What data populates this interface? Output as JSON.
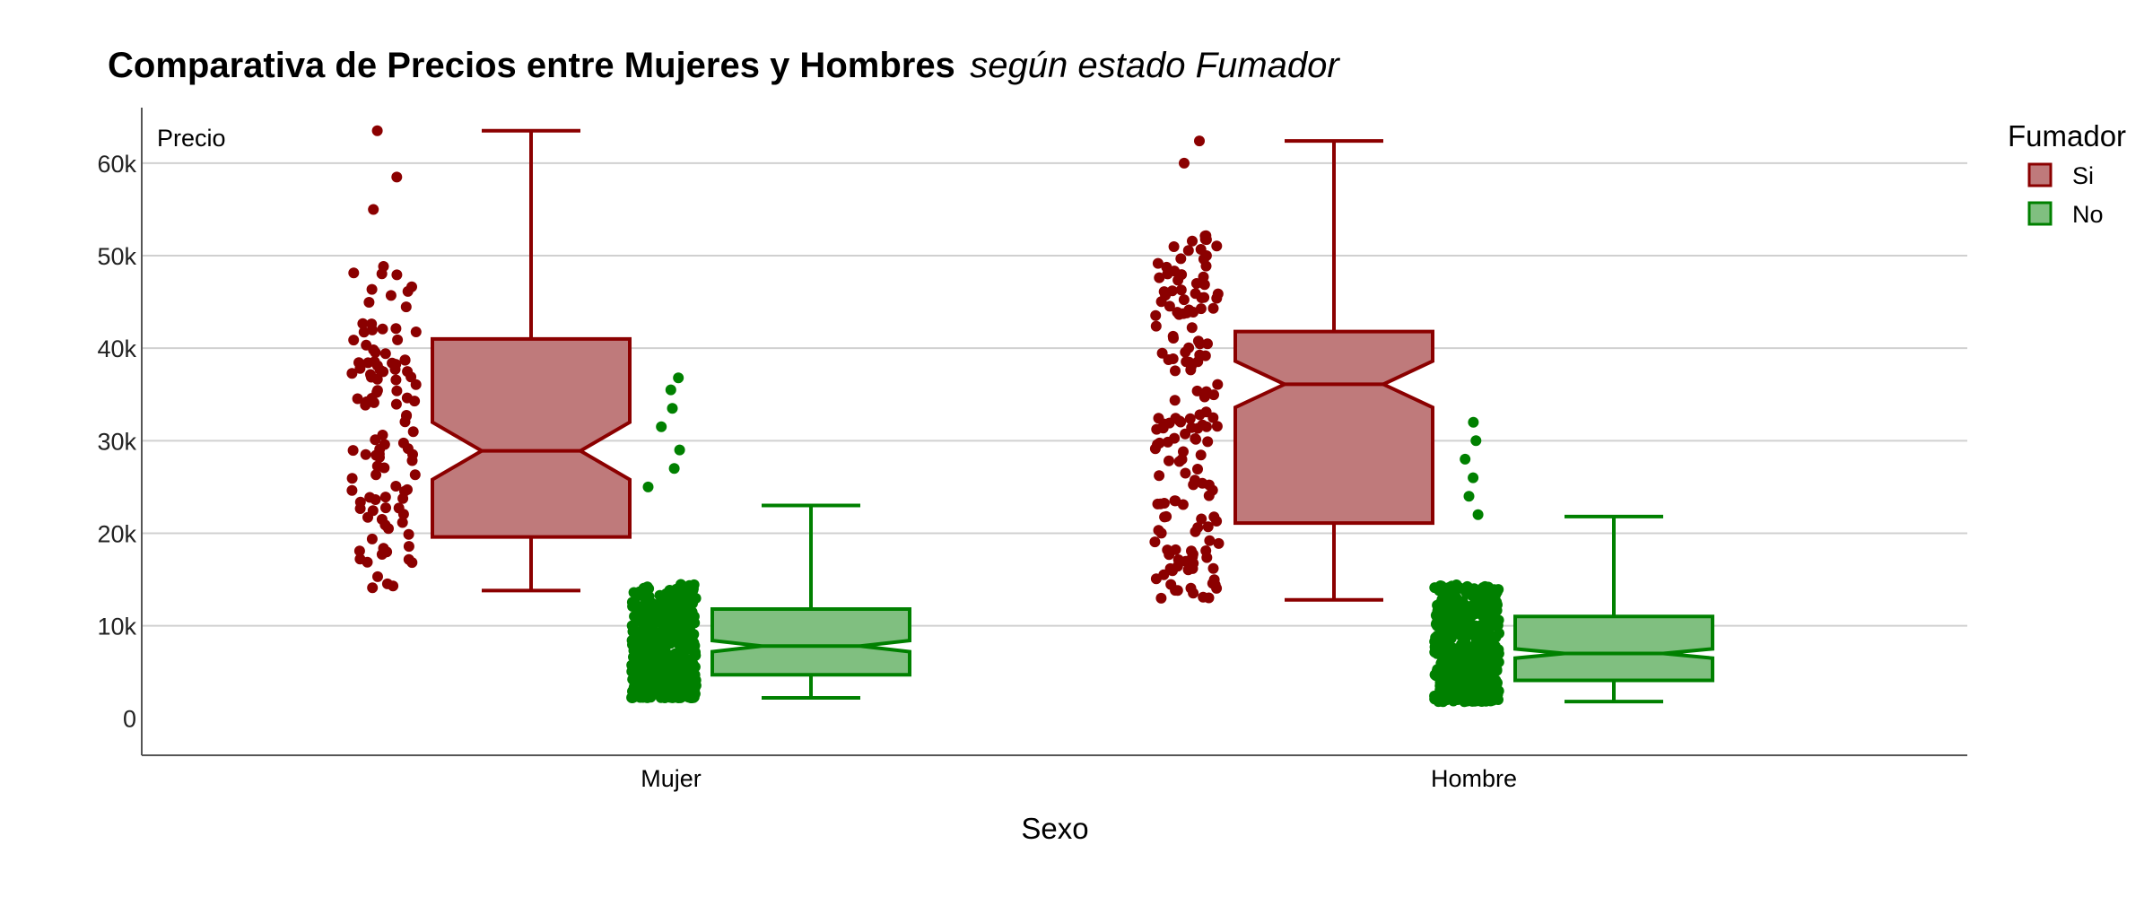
{
  "chart_data": {
    "type": "box",
    "title": "Comparativa de Precios entre Mujeres y Hombres",
    "subtitle": "según estado Fumador",
    "xlabel": "Sexo",
    "ylabel": "Precio",
    "y_ticks": [
      "0",
      "10k",
      "20k",
      "30k",
      "40k",
      "50k",
      "60k"
    ],
    "y_tick_values": [
      0,
      10000,
      20000,
      30000,
      40000,
      50000,
      60000
    ],
    "ylim": [
      -4000,
      66000
    ],
    "categories": [
      "Mujer",
      "Hombre"
    ],
    "legend": {
      "title": "Fumador",
      "entries": [
        "Si",
        "No"
      ],
      "position": "right"
    },
    "grid": "horizontal",
    "notched": true,
    "jittered_points": true,
    "colors": {
      "Si": {
        "stroke": "#8b0000",
        "fill": "#bf7a7b"
      },
      "No": {
        "stroke": "#008000",
        "fill": "#80bf80"
      }
    },
    "series": [
      {
        "name": "Si",
        "boxes": [
          {
            "category": "Mujer",
            "whisker_low": 13800,
            "q1": 19600,
            "median": 28900,
            "q3": 41000,
            "whisker_high": 63500,
            "notch_low": 25800,
            "notch_high": 32000,
            "point_range": [
              13800,
              49000
            ],
            "outliers": [
              55000,
              58500,
              63500
            ],
            "n_points": 110
          },
          {
            "category": "Hombre",
            "whisker_low": 12800,
            "q1": 21100,
            "median": 36100,
            "q3": 41800,
            "whisker_high": 62400,
            "notch_low": 33600,
            "notch_high": 38600,
            "point_range": [
              12800,
              52500
            ],
            "outliers": [
              60000,
              62400
            ],
            "n_points": 160
          }
        ]
      },
      {
        "name": "No",
        "boxes": [
          {
            "category": "Mujer",
            "whisker_low": 2200,
            "q1": 4700,
            "median": 7800,
            "q3": 11800,
            "whisker_high": 23000,
            "notch_low": 7200,
            "notch_high": 8400,
            "point_range": [
              2200,
              14500
            ],
            "outliers": [
              25000,
              27000,
              29000,
              31500,
              33500,
              35500,
              36800
            ],
            "n_points": 520
          },
          {
            "category": "Hombre",
            "whisker_low": 1800,
            "q1": 4100,
            "median": 7000,
            "q3": 11000,
            "whisker_high": 21800,
            "notch_low": 6500,
            "notch_high": 7500,
            "point_range": [
              1800,
              14500
            ],
            "outliers": [
              22000,
              24000,
              26000,
              28000,
              30000,
              32000
            ],
            "n_points": 520
          }
        ]
      }
    ]
  }
}
